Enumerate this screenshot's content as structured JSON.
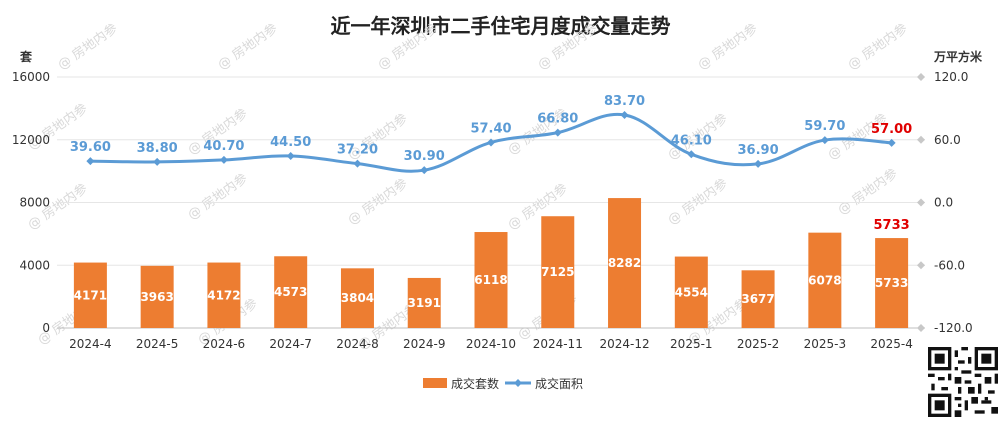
{
  "chart_data": {
    "type": "bar",
    "title": "近一年深圳市二手住宅月度成交量走势",
    "categories": [
      "2024-4",
      "2024-5",
      "2024-6",
      "2024-7",
      "2024-8",
      "2024-9",
      "2024-10",
      "2024-11",
      "2024-12",
      "2025-1",
      "2025-2",
      "2025-3",
      "2025-4"
    ],
    "y_left": {
      "unit": "套",
      "ylim": [
        0,
        16000
      ],
      "ticks": [
        "0",
        "4000",
        "8000",
        "12000",
        "16000"
      ]
    },
    "y_right": {
      "unit": "万平方米",
      "ylim": [
        -120,
        120
      ],
      "ticks": [
        "-120.0",
        "-60.0",
        "0.0",
        "60.0",
        "120.0"
      ]
    },
    "series": [
      {
        "name": "成交套数",
        "type": "bar",
        "axis": "left",
        "color": "#ED7D31",
        "values": [
          4171,
          3963,
          4172,
          4573,
          3804,
          3191,
          6118,
          7125,
          8282,
          4554,
          3677,
          6078,
          5733
        ],
        "labels": [
          "4171",
          "3963",
          "4172",
          "4573",
          "3804",
          "3191",
          "6118",
          "7125",
          "8282",
          "4554",
          "3677",
          "6078",
          "5733"
        ]
      },
      {
        "name": "成交面积",
        "type": "line",
        "axis": "right",
        "color": "#5B9BD5",
        "values": [
          39.6,
          38.8,
          40.7,
          44.5,
          37.2,
          30.9,
          57.4,
          66.8,
          83.7,
          46.1,
          36.9,
          59.7,
          57.0
        ],
        "labels": [
          "39.60",
          "38.80",
          "40.70",
          "44.50",
          "37.20",
          "30.90",
          "57.40",
          "66.80",
          "83.70",
          "46.10",
          "36.90",
          "59.70",
          "57.00"
        ]
      }
    ],
    "highlight_color": "#E00000",
    "grid": true,
    "legend": "bottom",
    "watermark": "@ 房地内参"
  }
}
